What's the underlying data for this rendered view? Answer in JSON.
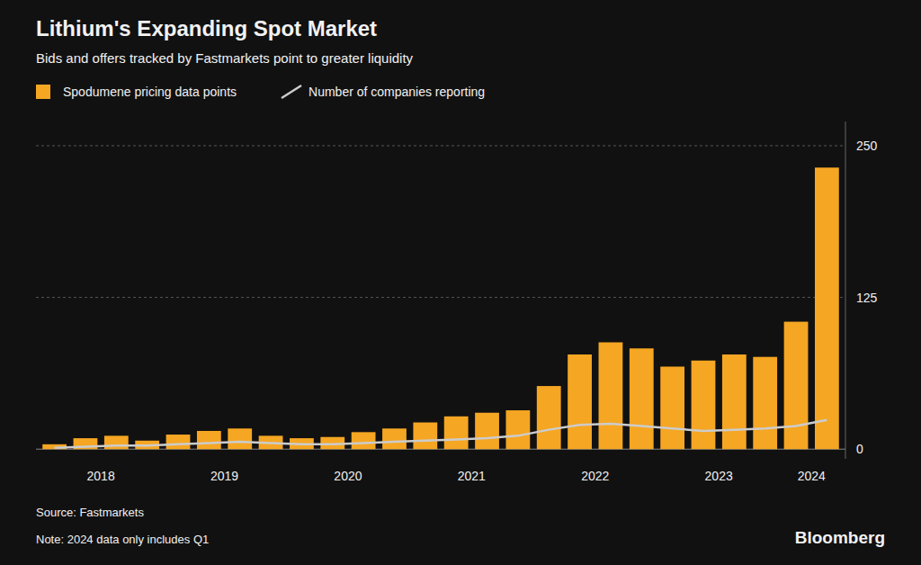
{
  "chart_data": {
    "type": "bar",
    "title": "Lithium's Expanding Spot Market",
    "subtitle": "Bids and offers tracked by Fastmarkets point to greater liquidity",
    "annotations": [
      "Source:  Fastmarkets",
      "Note:  2024 data only includes Q1",
      "Bloomberg"
    ],
    "categories": [
      null,
      null,
      null,
      null,
      null,
      null,
      null,
      null,
      null,
      null,
      null,
      null,
      null,
      null,
      null,
      null,
      null,
      null,
      null,
      null,
      null,
      null,
      null,
      null,
      null,
      null
    ],
    "series": [
      {
        "name": "Spodumene pricing data points",
        "type": "bar",
        "color": "#f5a623",
        "values": [
          4,
          9,
          11,
          7,
          12,
          15,
          17,
          11,
          9,
          10,
          14,
          17,
          22,
          27,
          30,
          32,
          52,
          78,
          88,
          83,
          68,
          73,
          78,
          76,
          105,
          232
        ]
      },
      {
        "name": "Number of companies reporting",
        "type": "line",
        "color": "#cccccc",
        "values": [
          1,
          2,
          3,
          3,
          4,
          5,
          6,
          5,
          4,
          4,
          5,
          6,
          7,
          8,
          9,
          11,
          16,
          20,
          21,
          19,
          17,
          15,
          16,
          17,
          19,
          24
        ]
      }
    ],
    "xticks": [
      {
        "value": 1.5,
        "label": "2018"
      },
      {
        "value": 5.5,
        "label": "2019"
      },
      {
        "value": 9.5,
        "label": "2020"
      },
      {
        "value": 13.5,
        "label": "2021"
      },
      {
        "value": 17.5,
        "label": "2022"
      },
      {
        "value": 21.5,
        "label": "2023"
      },
      {
        "value": 24.5,
        "label": "2024"
      }
    ],
    "ylim": [
      -8,
      270
    ],
    "yticks": [
      0,
      125,
      250
    ],
    "grid": true,
    "legend": "top"
  }
}
